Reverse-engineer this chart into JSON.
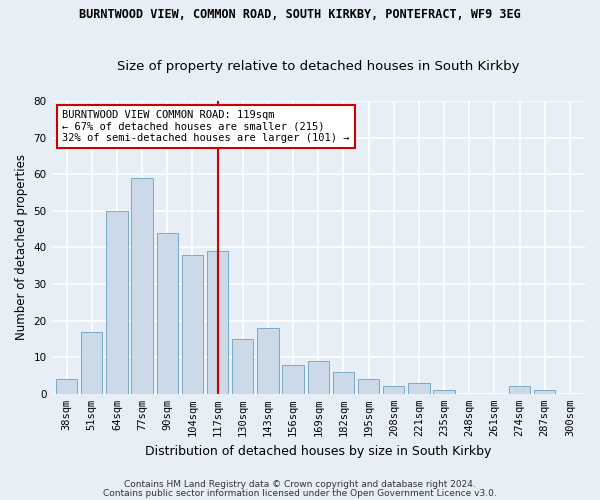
{
  "title": "BURNTWOOD VIEW, COMMON ROAD, SOUTH KIRKBY, PONTEFRACT, WF9 3EG",
  "subtitle": "Size of property relative to detached houses in South Kirkby",
  "xlabel": "Distribution of detached houses by size in South Kirkby",
  "ylabel": "Number of detached properties",
  "categories": [
    "38sqm",
    "51sqm",
    "64sqm",
    "77sqm",
    "90sqm",
    "104sqm",
    "117sqm",
    "130sqm",
    "143sqm",
    "156sqm",
    "169sqm",
    "182sqm",
    "195sqm",
    "208sqm",
    "221sqm",
    "235sqm",
    "248sqm",
    "261sqm",
    "274sqm",
    "287sqm",
    "300sqm"
  ],
  "values": [
    4,
    17,
    50,
    59,
    44,
    38,
    39,
    15,
    18,
    8,
    9,
    6,
    4,
    2,
    3,
    1,
    0,
    0,
    2,
    1,
    0
  ],
  "bar_color": "#ccd9e8",
  "bar_edge_color": "#7aaac8",
  "bar_width": 0.85,
  "ylim": [
    0,
    80
  ],
  "yticks": [
    0,
    10,
    20,
    30,
    40,
    50,
    60,
    70,
    80
  ],
  "vline_x_idx": 6,
  "vline_color": "#cc0000",
  "annotation_line1": "BURNTWOOD VIEW COMMON ROAD: 119sqm",
  "annotation_line2": "← 67% of detached houses are smaller (215)",
  "annotation_line3": "32% of semi-detached houses are larger (101) →",
  "annotation_box_color": "#ffffff",
  "annotation_box_edge": "#cc0000",
  "footer1": "Contains HM Land Registry data © Crown copyright and database right 2024.",
  "footer2": "Contains public sector information licensed under the Open Government Licence v3.0.",
  "fig_bg_color": "#e8eef5",
  "plot_bg_color": "#e8eef5",
  "title_fontsize": 8.5,
  "subtitle_fontsize": 9.5,
  "xlabel_fontsize": 9,
  "ylabel_fontsize": 8.5,
  "tick_fontsize": 7.5,
  "annot_fontsize": 7.5,
  "footer_fontsize": 6.5,
  "grid_color": "#ffffff",
  "grid_linewidth": 1.2
}
